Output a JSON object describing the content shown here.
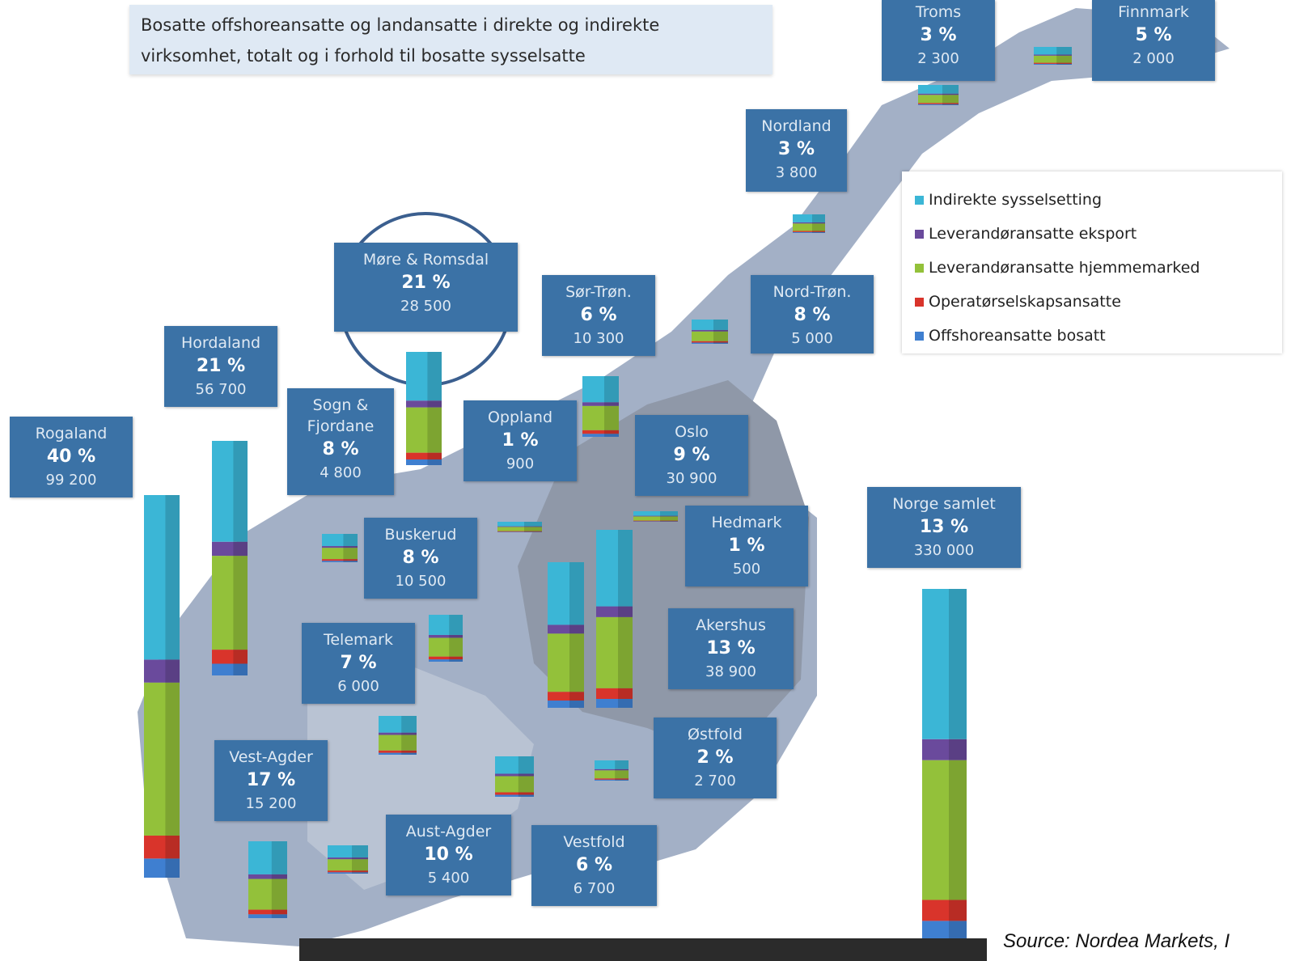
{
  "header": {
    "title": "Bosatte offshoreansatte og landansatte i direkte og indirekte virksomhet, totalt og i forhold til bosatte sysselsatte"
  },
  "legend": [
    {
      "label": "Indirekte sysselsetting",
      "color": "#3bb6d6"
    },
    {
      "label": "Leverandøransatte eksport",
      "color": "#6a4a9c"
    },
    {
      "label": "Leverandøransatte hjemmemarked",
      "color": "#93c13a"
    },
    {
      "label": "Operatørselskapsansatte",
      "color": "#d9342b"
    },
    {
      "label": "Offshoreansatte bosatt",
      "color": "#3f7fd0"
    }
  ],
  "regions": [
    {
      "name": "Troms",
      "percent": "3 %",
      "count": "2 300"
    },
    {
      "name": "Finnmark",
      "percent": "5 %",
      "count": "2 000"
    },
    {
      "name": "Nordland",
      "percent": "3  %",
      "count": "3 800"
    },
    {
      "name": "Møre & Romsdal",
      "percent": "21 %",
      "count": "28 500"
    },
    {
      "name": "Sør-Trøn.",
      "percent": "6 %",
      "count": "10 300"
    },
    {
      "name": "Nord-Trøn.",
      "percent": "8 %",
      "count": "5 000"
    },
    {
      "name": "Hordaland",
      "percent": "21 %",
      "count": "56 700"
    },
    {
      "name": "Sogn & Fjordane",
      "percent": "8 %",
      "count": "4 800"
    },
    {
      "name": "Oppland",
      "percent": "1 %",
      "count": "900"
    },
    {
      "name": "Oslo",
      "percent": "9 %",
      "count": "30 900"
    },
    {
      "name": "Rogaland",
      "percent": "40 %",
      "count": "99 200"
    },
    {
      "name": "Norge samlet",
      "percent": "13 %",
      "count": "330 000"
    },
    {
      "name": "Hedmark",
      "percent": "1 %",
      "count": "500"
    },
    {
      "name": "Buskerud",
      "percent": "8 %",
      "count": "10 500"
    },
    {
      "name": "Akershus",
      "percent": "13 %",
      "count": "38 900"
    },
    {
      "name": "Telemark",
      "percent": "7 %",
      "count": "6 000"
    },
    {
      "name": "Østfold",
      "percent": "2 %",
      "count": "2 700"
    },
    {
      "name": "Vest-Agder",
      "percent": "17 %",
      "count": "15 200"
    },
    {
      "name": "Aust-Agder",
      "percent": "10 %",
      "count": "5 400"
    },
    {
      "name": "Vestfold",
      "percent": "6 %",
      "count": "6 700"
    }
  ],
  "source": "Source: Nordea Markets, I"
}
